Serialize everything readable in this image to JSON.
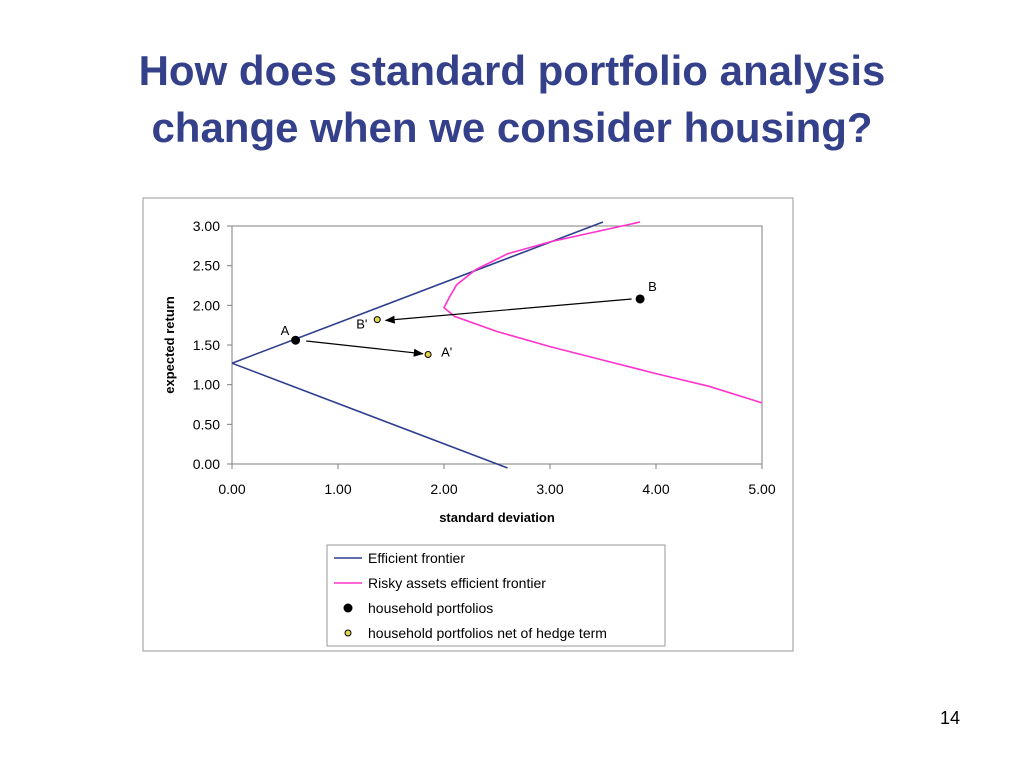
{
  "slide": {
    "title_line1": "How does standard portfolio analysis",
    "title_line2": "change when we consider housing?",
    "page_number": "14",
    "title_color": "#34418a"
  },
  "chart_data": {
    "type": "line",
    "xlabel": "standard deviation",
    "ylabel": "expected return",
    "xlim": [
      0,
      5
    ],
    "ylim": [
      0,
      3
    ],
    "x_ticks": [
      "0.00",
      "1.00",
      "2.00",
      "3.00",
      "4.00",
      "5.00"
    ],
    "y_ticks": [
      "0.00",
      "0.50",
      "1.00",
      "1.50",
      "2.00",
      "2.50",
      "3.00"
    ],
    "grid": false,
    "legend_position": "bottom",
    "series": [
      {
        "name": "Efficient frontier",
        "kind": "line",
        "color": "#2e3f8f",
        "segments": [
          [
            [
              0.0,
              1.27
            ],
            [
              3.5,
              3.05
            ]
          ],
          [
            [
              0.0,
              1.27
            ],
            [
              2.6,
              -0.05
            ]
          ]
        ]
      },
      {
        "name": "Risky assets efficient frontier",
        "kind": "line",
        "color": "#ff33cc",
        "points": [
          [
            3.85,
            3.05
          ],
          [
            3.0,
            2.8
          ],
          [
            2.6,
            2.65
          ],
          [
            2.3,
            2.45
          ],
          [
            2.12,
            2.26
          ],
          [
            2.05,
            2.1
          ],
          [
            2.0,
            1.97
          ],
          [
            2.1,
            1.86
          ],
          [
            2.5,
            1.67
          ],
          [
            3.0,
            1.48
          ],
          [
            3.5,
            1.31
          ],
          [
            4.0,
            1.14
          ],
          [
            4.5,
            0.98
          ],
          [
            5.0,
            0.77
          ]
        ]
      },
      {
        "name": "household portfolios",
        "kind": "scatter",
        "color": "#000000",
        "points": [
          {
            "label": "A",
            "x": 0.6,
            "y": 1.56
          },
          {
            "label": "B",
            "x": 3.85,
            "y": 2.08
          }
        ]
      },
      {
        "name": "household portfolios net of hedge term",
        "kind": "scatter",
        "color": "#e0d84a",
        "points": [
          {
            "label": "A'",
            "x": 1.85,
            "y": 1.38
          },
          {
            "label": "B'",
            "x": 1.37,
            "y": 1.82
          }
        ]
      }
    ],
    "arrows": [
      {
        "from": [
          0.7,
          1.55
        ],
        "to": [
          1.8,
          1.39
        ]
      },
      {
        "from": [
          3.77,
          2.08
        ],
        "to": [
          1.45,
          1.81
        ]
      }
    ]
  }
}
